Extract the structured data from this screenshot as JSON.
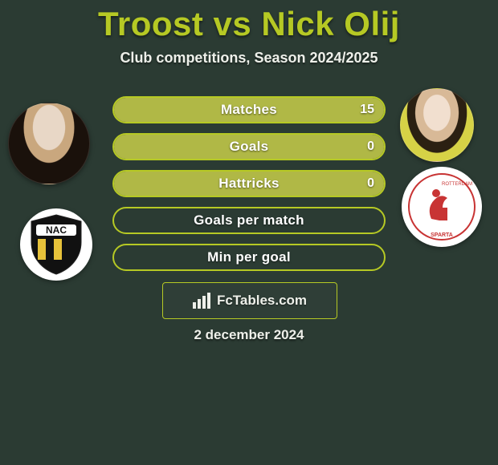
{
  "title": "Troost vs Nick Olij",
  "subtitle": "Club competitions, Season 2024/2025",
  "date": "2 december 2024",
  "branding": "FcTables.com",
  "colors": {
    "accent": "#b6c924",
    "bar_fill": "#b0b846",
    "background": "#2b3b33",
    "text": "#eef0ea"
  },
  "players": {
    "left": {
      "name": "Troost",
      "club": "NAC"
    },
    "right": {
      "name": "Nick Olij",
      "club": "Sparta Rotterdam"
    }
  },
  "stats": [
    {
      "label": "Matches",
      "value_right": "15",
      "fill_pct": 100
    },
    {
      "label": "Goals",
      "value_right": "0",
      "fill_pct": 100
    },
    {
      "label": "Hattricks",
      "value_right": "0",
      "fill_pct": 100
    },
    {
      "label": "Goals per match",
      "value_right": "",
      "fill_pct": 0
    },
    {
      "label": "Min per goal",
      "value_right": "",
      "fill_pct": 0
    }
  ]
}
